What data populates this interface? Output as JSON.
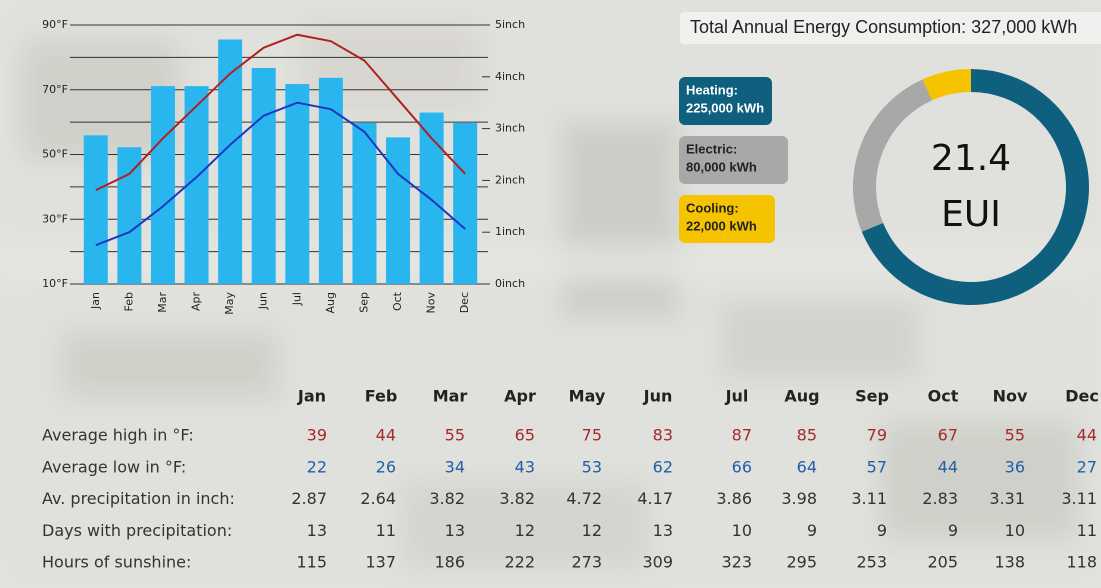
{
  "chart_data": [
    {
      "type": "combo",
      "categories": [
        "Jan",
        "Feb",
        "Mar",
        "Apr",
        "May",
        "Jun",
        "Jul",
        "Aug",
        "Sep",
        "Oct",
        "Nov",
        "Dec"
      ],
      "series": [
        {
          "name": "Av. precipitation in inch:",
          "kind": "bar",
          "axis": "y2",
          "color": "#29b6ef",
          "values": [
            2.87,
            2.64,
            3.82,
            3.82,
            4.72,
            4.17,
            3.86,
            3.98,
            3.11,
            2.83,
            3.31,
            3.11
          ]
        },
        {
          "name": "Average high in °F:",
          "kind": "line",
          "color": "#b02020",
          "values": [
            39,
            44,
            55,
            65,
            75,
            83,
            87,
            85,
            79,
            67,
            55,
            44
          ]
        },
        {
          "name": "Average low in °F:",
          "kind": "line",
          "color": "#1c36c0",
          "values": [
            22,
            26,
            34,
            43,
            53,
            62,
            66,
            64,
            57,
            44,
            36,
            27
          ]
        }
      ],
      "ylim": [
        10,
        90
      ],
      "yticks": [
        {
          "value": 10,
          "label": "10°F"
        },
        {
          "value": 30,
          "label": "30°F"
        },
        {
          "value": 50,
          "label": "50°F"
        },
        {
          "value": 70,
          "label": "70°F"
        },
        {
          "value": 90,
          "label": "90°F"
        }
      ],
      "y_minor_ticks": [
        20,
        40,
        60,
        80
      ],
      "y2lim": [
        0,
        5
      ],
      "y2ticks": [
        {
          "value": 0,
          "label": "0inch"
        },
        {
          "value": 1,
          "label": "1inch"
        },
        {
          "value": 2,
          "label": "2inch"
        },
        {
          "value": 3,
          "label": "3inch"
        },
        {
          "value": 4,
          "label": "4inch"
        },
        {
          "value": 5,
          "label": "5inch"
        }
      ],
      "grid": true
    },
    {
      "type": "donut",
      "title": "Total Annual Energy Consumption: 327,000 kWh",
      "categories": [
        "Heating:",
        "Electric:",
        "Cooling:"
      ],
      "values": [
        225000,
        80000,
        22000
      ],
      "value_labels": [
        "225,000 kWh",
        "80,000 kWh",
        "22,000 kWh"
      ],
      "colors": [
        "#0f5f7e",
        "#a8a8a8",
        "#f6c300"
      ],
      "direction": "counterclockwise",
      "center_value": 21.4,
      "center_label": "EUI"
    }
  ],
  "table": {
    "rows": [
      {
        "label": "Days with precipitation:",
        "values": [
          13,
          11,
          13,
          12,
          12,
          13,
          10,
          9,
          9,
          9,
          10,
          11
        ]
      },
      {
        "label": "Hours of sunshine:",
        "values": [
          115,
          137,
          186,
          222,
          273,
          309,
          323,
          295,
          253,
          205,
          138,
          118
        ]
      }
    ]
  }
}
